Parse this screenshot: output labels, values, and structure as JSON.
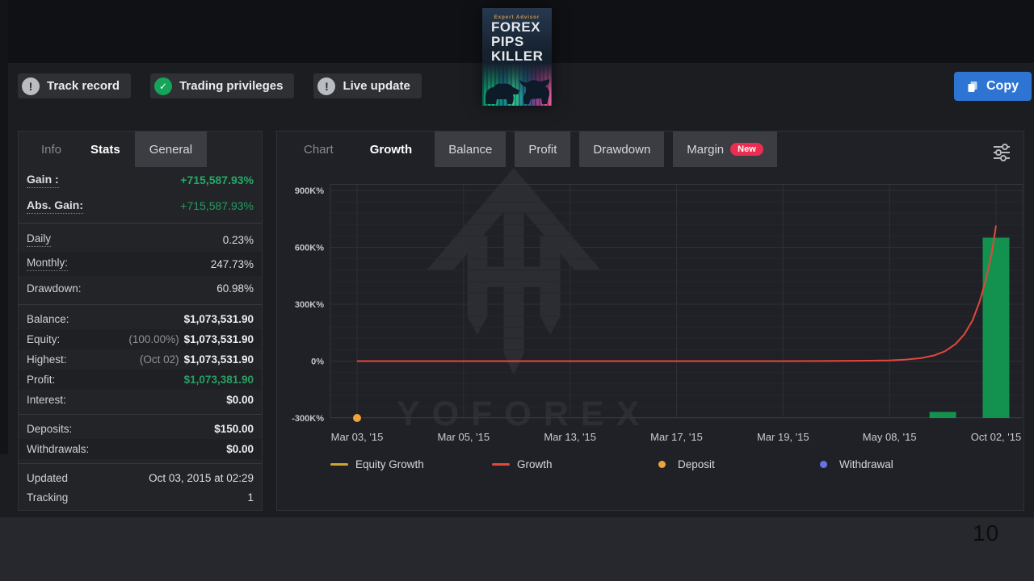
{
  "header": {
    "badges": [
      {
        "label": "Track record",
        "icon": "exclamation"
      },
      {
        "label": "Trading privileges",
        "icon": "check"
      },
      {
        "label": "Live update",
        "icon": "exclamation"
      }
    ],
    "copy_button_label": "Copy"
  },
  "book_cover": {
    "author": "Expert Advisor",
    "title_lines": [
      "FOREX",
      "PIPS",
      "KILLER"
    ]
  },
  "stats_panel": {
    "tabs": [
      {
        "label": "Info",
        "active": false
      },
      {
        "label": "Stats",
        "active": true
      },
      {
        "label": "General",
        "active": false
      }
    ],
    "groups": [
      [
        {
          "label": "Gain :",
          "value": "+715,587.93%"
        },
        {
          "label": "Abs. Gain:",
          "value": "+715,587.93%"
        }
      ],
      [
        {
          "label": "Daily",
          "value": "0.23%"
        },
        {
          "label": "Monthly:",
          "value": "247.73%"
        },
        {
          "label": "Drawdown:",
          "value": "60.98%"
        }
      ],
      [
        {
          "label": "Balance:",
          "value": "$1,073,531.90"
        },
        {
          "label": "Equity:",
          "prefix": "(100.00%)",
          "value": "$1,073,531.90"
        },
        {
          "label": "Highest:",
          "prefix": "(Oct 02)",
          "value": "$1,073,531.90"
        },
        {
          "label": "Profit:",
          "value": "$1,073,381.90"
        },
        {
          "label": "Interest:",
          "value": "$0.00"
        }
      ],
      [
        {
          "label": "Deposits:",
          "value": "$150.00"
        },
        {
          "label": "Withdrawals:",
          "value": "$0.00"
        }
      ],
      [
        {
          "label": "Updated",
          "value": "Oct 03, 2015 at 02:29"
        },
        {
          "label": "Tracking",
          "value": "1"
        }
      ]
    ]
  },
  "chart_panel": {
    "tabs": [
      {
        "label": "Chart",
        "active": false
      },
      {
        "label": "Growth",
        "active": true
      },
      {
        "label": "Balance",
        "active": false
      },
      {
        "label": "Profit",
        "active": false
      },
      {
        "label": "Drawdown",
        "active": false
      },
      {
        "label": "Margin",
        "active": false,
        "badge": "New"
      }
    ],
    "watermark_text": "YOFOREX",
    "chart_data": {
      "type": "line",
      "title": "Growth",
      "x_labels": [
        "Mar 03, '15",
        "Mar 05, '15",
        "Mar 13, '15",
        "Mar 17, '15",
        "Mar 19, '15",
        "May 08, '15",
        "Oct 02, '15"
      ],
      "y_ticks": [
        {
          "label": "900K%",
          "value": 900
        },
        {
          "label": "600K%",
          "value": 600
        },
        {
          "label": "300K%",
          "value": 300
        },
        {
          "label": "0%",
          "value": 0
        },
        {
          "label": "-300K%",
          "value": -300
        }
      ],
      "ylim": [
        -300,
        934
      ],
      "y_unit": "thousand percent (K%)",
      "grid": {
        "minor_step": 60,
        "minor_color": "#26272c",
        "major_color": "#2e3035",
        "border_color": "#34363b"
      },
      "growth_line": {
        "name": "Growth",
        "color": "#e2473c",
        "points": [
          [
            0,
            0
          ],
          [
            1,
            0
          ],
          [
            2,
            0
          ],
          [
            3,
            0
          ],
          [
            4,
            0
          ],
          [
            4.5,
            1
          ],
          [
            4.8,
            2
          ],
          [
            5,
            4
          ],
          [
            5.15,
            8
          ],
          [
            5.3,
            16
          ],
          [
            5.42,
            30
          ],
          [
            5.52,
            52
          ],
          [
            5.62,
            90
          ],
          [
            5.7,
            140
          ],
          [
            5.78,
            215
          ],
          [
            5.85,
            320
          ],
          [
            5.91,
            440
          ],
          [
            5.96,
            570
          ],
          [
            6,
            715
          ]
        ]
      },
      "bars": {
        "name": "growth-bars",
        "color": "#13914e",
        "baseline": -300,
        "width": 33,
        "items": [
          {
            "x": 5.5,
            "top": -268
          },
          {
            "x": 6,
            "top": 651
          }
        ]
      },
      "deposit_markers": [
        {
          "x": 0,
          "y": -300
        }
      ],
      "withdrawal_markers": [],
      "legend": [
        {
          "label": "Equity Growth",
          "swatch": "line",
          "color": "#d2a52e"
        },
        {
          "label": "Growth",
          "swatch": "line",
          "color": "#e2473c"
        },
        {
          "label": "Deposit",
          "swatch": "dot",
          "color": "#f0a23c"
        },
        {
          "label": "Withdrawal",
          "swatch": "dot",
          "color": "#6672e8"
        }
      ]
    }
  },
  "page_footer": {
    "page_number": "10"
  }
}
